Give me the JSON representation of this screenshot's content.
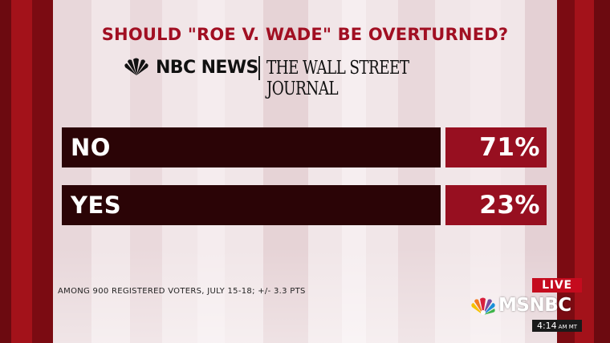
{
  "poll": {
    "title": "SHOULD \"ROE V. WADE\" BE OVERTURNED?",
    "sponsors": {
      "nbc_news": "NBC NEWS",
      "wsj": "THE WALL STREET JOURNAL"
    },
    "results": [
      {
        "label": "NO",
        "percent": "71%"
      },
      {
        "label": "YES",
        "percent": "23%"
      }
    ],
    "footnote": "AMONG 900 REGISTERED VOTERS, JULY 15-18; +/- 3.3 PTS"
  },
  "broadcast": {
    "live_label": "LIVE",
    "network": "MSNBC",
    "time": "4:14",
    "time_zone": "AM MT"
  },
  "colors": {
    "title": "#a10f22",
    "bar_dark": "#2b0406",
    "bar_accent": "#970f20",
    "live_badge": "#c50b1e",
    "frame": "#8e0e14"
  },
  "icons": [
    "nbc-peacock-icon",
    "msnbc-peacock-icon"
  ]
}
